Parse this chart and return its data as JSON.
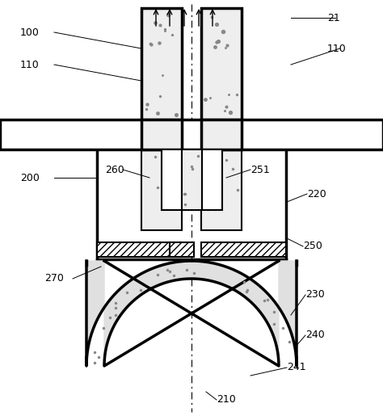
{
  "bg_color": "#ffffff",
  "line_color": "#000000",
  "fig_width": 4.74,
  "fig_height": 5.15,
  "dpi": 100
}
